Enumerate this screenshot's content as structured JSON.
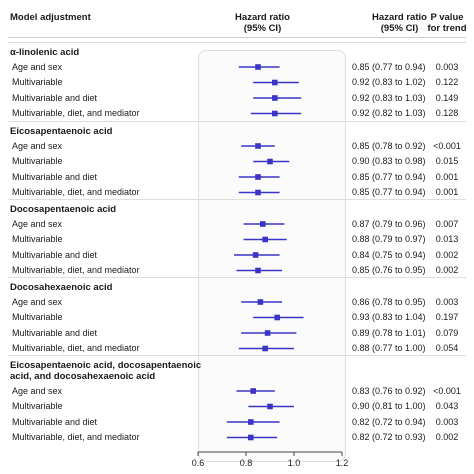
{
  "headers": {
    "model": "Model adjustment",
    "hr_line1": "Hazard ratio",
    "hr_line2": "(95% CI)",
    "ci_line1": "Hazard ratio",
    "ci_line2": "(95% CI)",
    "p_line1": "P value",
    "p_line2": "for trend"
  },
  "chart_data": {
    "type": "scatter",
    "subtype": "forest-plot",
    "xlim": [
      0.6,
      1.2
    ],
    "x_ticks": [
      "0.6",
      "0.8",
      "1.0",
      "1.2"
    ],
    "reference_line": 1.0,
    "colors": {
      "marker": "#3a35c6",
      "whisker": "#3a35c6"
    },
    "groups": [
      {
        "title": [
          "α-linolenic acid"
        ],
        "rows": [
          {
            "label": "Age and sex",
            "hr": 0.85,
            "lo": 0.77,
            "hi": 0.94,
            "ci_text": "0.85 (0.77 to 0.94)",
            "p": "0.003"
          },
          {
            "label": "Multivariable",
            "hr": 0.92,
            "lo": 0.83,
            "hi": 1.02,
            "ci_text": "0.92 (0.83 to 1.02)",
            "p": "0.122"
          },
          {
            "label": "Multivariable and diet",
            "hr": 0.92,
            "lo": 0.83,
            "hi": 1.03,
            "ci_text": "0.92 (0.83 to 1.03)",
            "p": "0.149"
          },
          {
            "label": "Multivariable, diet, and mediator",
            "hr": 0.92,
            "lo": 0.82,
            "hi": 1.03,
            "ci_text": "0.92 (0.82 to 1.03)",
            "p": "0.128"
          }
        ]
      },
      {
        "title": [
          "Eicosapentaenoic acid"
        ],
        "rows": [
          {
            "label": "Age and sex",
            "hr": 0.85,
            "lo": 0.78,
            "hi": 0.92,
            "ci_text": "0.85 (0.78 to 0.92)",
            "p": "<0.001"
          },
          {
            "label": "Multivariable",
            "hr": 0.9,
            "lo": 0.83,
            "hi": 0.98,
            "ci_text": "0.90 (0.83 to 0.98)",
            "p": "0.015"
          },
          {
            "label": "Multivariable and diet",
            "hr": 0.85,
            "lo": 0.77,
            "hi": 0.94,
            "ci_text": "0.85 (0.77 to 0.94)",
            "p": "0.001"
          },
          {
            "label": "Multivariable, diet, and mediator",
            "hr": 0.85,
            "lo": 0.77,
            "hi": 0.94,
            "ci_text": "0.85 (0.77 to 0.94)",
            "p": "0.001"
          }
        ]
      },
      {
        "title": [
          "Docosapentaenoic acid"
        ],
        "rows": [
          {
            "label": "Age and sex",
            "hr": 0.87,
            "lo": 0.79,
            "hi": 0.96,
            "ci_text": "0.87 (0.79 to 0.96)",
            "p": "0.007"
          },
          {
            "label": "Multivariable",
            "hr": 0.88,
            "lo": 0.79,
            "hi": 0.97,
            "ci_text": "0.88 (0.79 to 0.97)",
            "p": "0.013"
          },
          {
            "label": "Multivariable and diet",
            "hr": 0.84,
            "lo": 0.75,
            "hi": 0.94,
            "ci_text": "0.84 (0.75 to 0.94)",
            "p": "0.002"
          },
          {
            "label": "Multivariable, diet, and mediator",
            "hr": 0.85,
            "lo": 0.76,
            "hi": 0.95,
            "ci_text": "0.85 (0.76 to 0.95)",
            "p": "0.002"
          }
        ]
      },
      {
        "title": [
          "Docosahexaenoic acid"
        ],
        "rows": [
          {
            "label": "Age and sex",
            "hr": 0.86,
            "lo": 0.78,
            "hi": 0.95,
            "ci_text": "0.86 (0.78 to 0.95)",
            "p": "0.003"
          },
          {
            "label": "Multivariable",
            "hr": 0.93,
            "lo": 0.83,
            "hi": 1.04,
            "ci_text": "0.93 (0.83 to 1.04)",
            "p": "0.197"
          },
          {
            "label": "Multivariable and diet",
            "hr": 0.89,
            "lo": 0.78,
            "hi": 1.01,
            "ci_text": "0.89 (0.78 to 1.01)",
            "p": "0.079"
          },
          {
            "label": "Multivariable, diet, and mediator",
            "hr": 0.88,
            "lo": 0.77,
            "hi": 1.0,
            "ci_text": "0.88 (0.77 to 1.00)",
            "p": "0.054"
          }
        ]
      },
      {
        "title": [
          "Eicosapentaenoic acid, docosapentaenoic",
          "acid, and docosahexaenoic acid"
        ],
        "rows": [
          {
            "label": "Age and sex",
            "hr": 0.83,
            "lo": 0.76,
            "hi": 0.92,
            "ci_text": "0.83 (0.76 to 0.92)",
            "p": "<0.001"
          },
          {
            "label": "Multivariable",
            "hr": 0.9,
            "lo": 0.81,
            "hi": 1.0,
            "ci_text": "0.90 (0.81 to 1.00)",
            "p": "0.043"
          },
          {
            "label": "Multivariable and diet",
            "hr": 0.82,
            "lo": 0.72,
            "hi": 0.94,
            "ci_text": "0.82 (0.72 to 0.94)",
            "p": "0.003"
          },
          {
            "label": "Multivariable, diet, and mediator",
            "hr": 0.82,
            "lo": 0.72,
            "hi": 0.93,
            "ci_text": "0.82 (0.72 to 0.93)",
            "p": "0.002"
          }
        ]
      }
    ]
  }
}
